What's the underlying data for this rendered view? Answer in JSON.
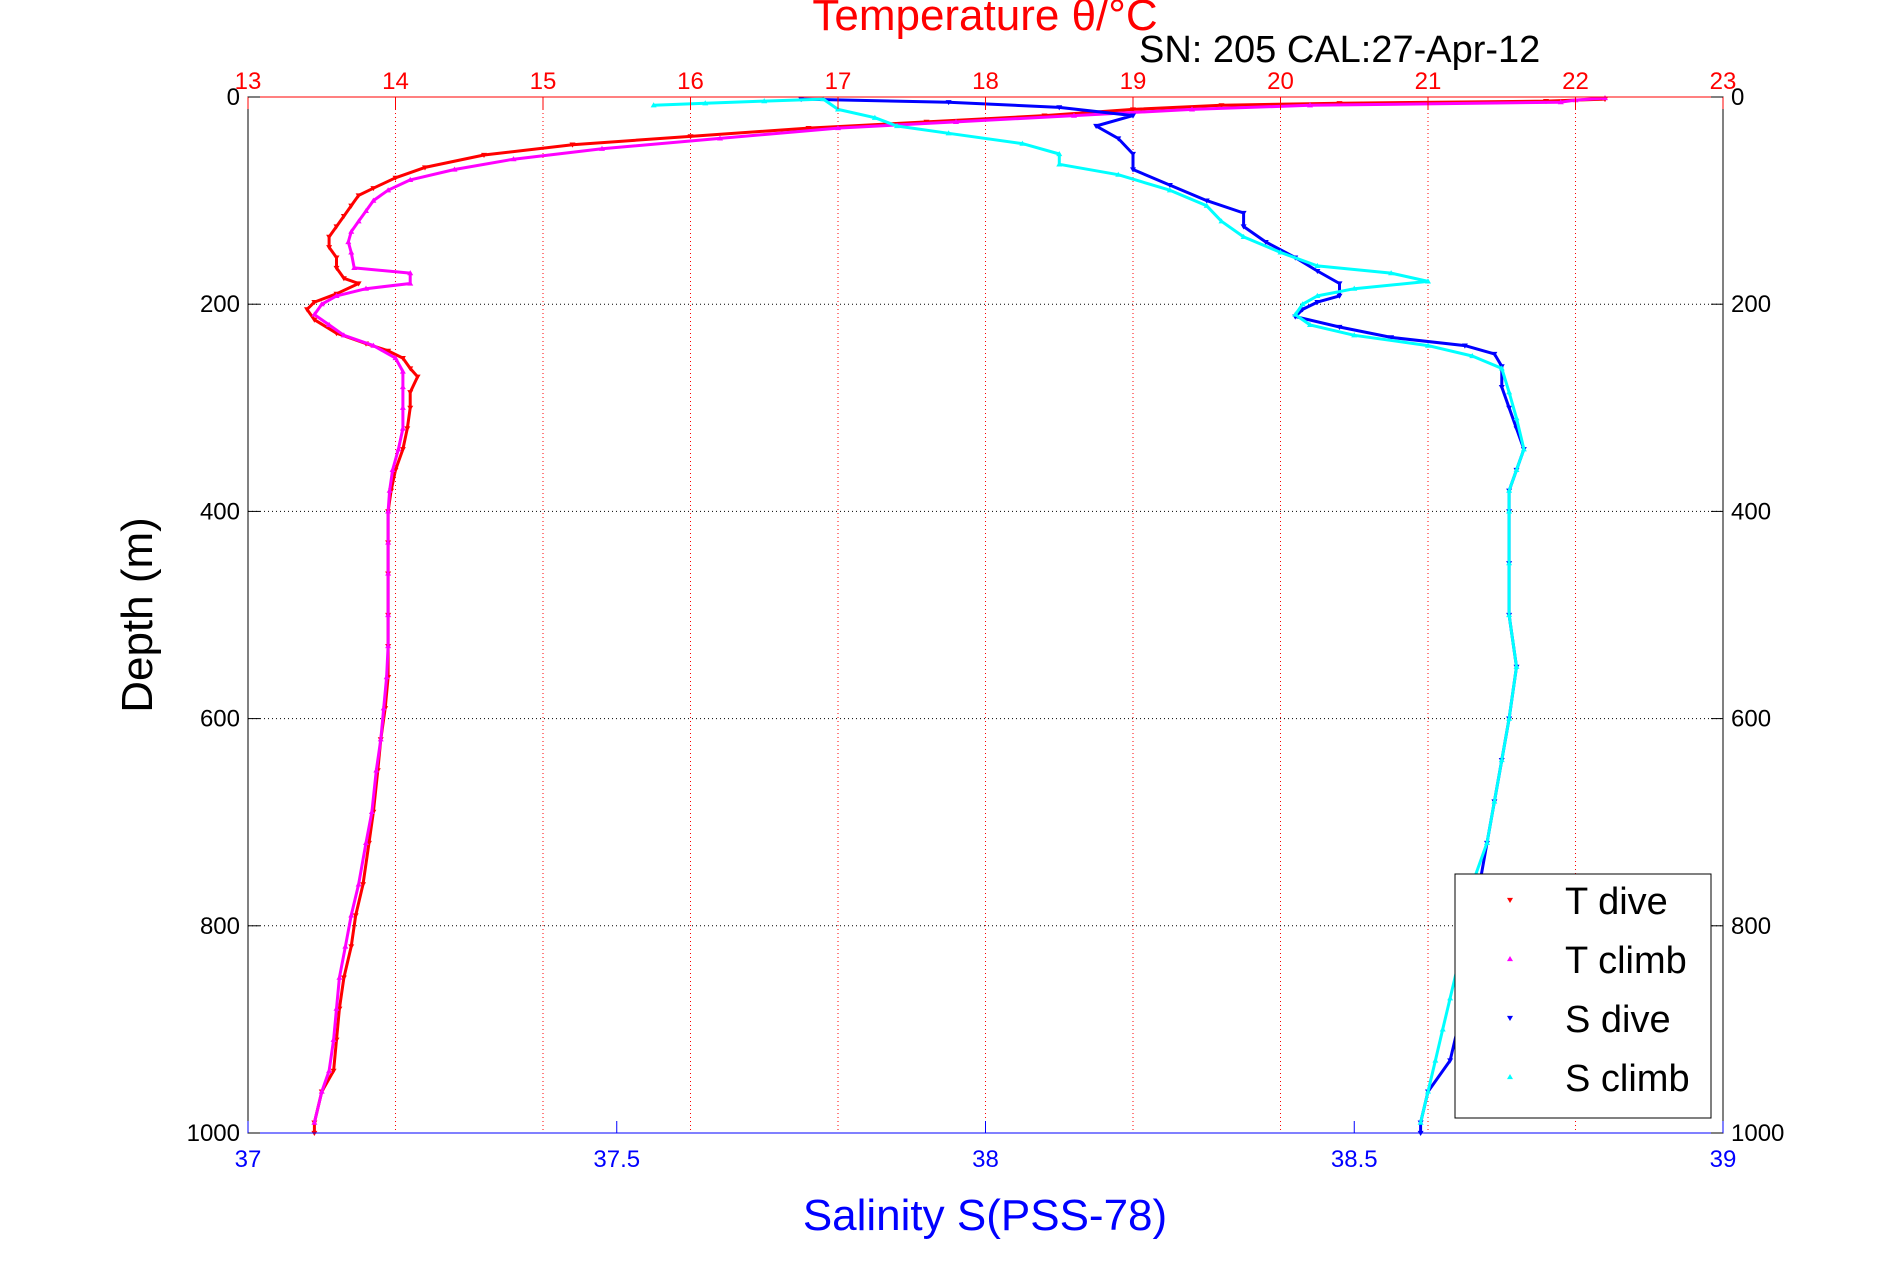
{
  "chart_data": {
    "type": "scatter",
    "title": "Temperature θ/°C",
    "subtitle": "SN: 205  CAL:27-Apr-12",
    "ylabel": "Depth (m)",
    "xlabel": "Salinity S(PSS-78)",
    "y_axis": {
      "label": "Depth (m)",
      "range": [
        0,
        1000
      ],
      "inverted": true,
      "ticks": [
        "0",
        "200",
        "400",
        "600",
        "800",
        "1000"
      ],
      "grid": true
    },
    "x_top_axis": {
      "label": "Temperature θ/°C",
      "range": [
        13,
        23
      ],
      "ticks": [
        "13",
        "14",
        "15",
        "16",
        "17",
        "18",
        "19",
        "20",
        "21",
        "22",
        "23"
      ],
      "color": "#ff0000",
      "grid": true
    },
    "x_bottom_axis": {
      "label": "Salinity S(PSS-78)",
      "range": [
        37,
        39
      ],
      "ticks": [
        "37",
        "37.5",
        "38",
        "38.5",
        "39"
      ],
      "color": "#0000ff"
    },
    "legend_position": "bottom-right",
    "series": [
      {
        "name": "T dive",
        "axis": "temperature",
        "color": "#ff0000",
        "marker": "triangle-down",
        "points": [
          [
            22.2,
            2
          ],
          [
            21.8,
            4
          ],
          [
            20.4,
            6
          ],
          [
            19.6,
            8
          ],
          [
            19.0,
            12
          ],
          [
            18.4,
            18
          ],
          [
            17.6,
            24
          ],
          [
            16.8,
            30
          ],
          [
            16.0,
            38
          ],
          [
            15.2,
            46
          ],
          [
            14.6,
            56
          ],
          [
            14.2,
            68
          ],
          [
            14.0,
            78
          ],
          [
            13.85,
            88
          ],
          [
            13.75,
            95
          ],
          [
            13.7,
            105
          ],
          [
            13.65,
            115
          ],
          [
            13.6,
            125
          ],
          [
            13.55,
            135
          ],
          [
            13.55,
            145
          ],
          [
            13.6,
            155
          ],
          [
            13.6,
            165
          ],
          [
            13.65,
            175
          ],
          [
            13.75,
            180
          ],
          [
            13.6,
            190
          ],
          [
            13.45,
            198
          ],
          [
            13.4,
            205
          ],
          [
            13.45,
            215
          ],
          [
            13.6,
            228
          ],
          [
            13.8,
            238
          ],
          [
            13.95,
            245
          ],
          [
            14.05,
            252
          ],
          [
            14.1,
            262
          ],
          [
            14.15,
            270
          ],
          [
            14.1,
            285
          ],
          [
            14.1,
            300
          ],
          [
            14.08,
            320
          ],
          [
            14.05,
            340
          ],
          [
            14.0,
            360
          ],
          [
            13.97,
            380
          ],
          [
            13.95,
            400
          ],
          [
            13.95,
            430
          ],
          [
            13.95,
            460
          ],
          [
            13.95,
            500
          ],
          [
            13.95,
            530
          ],
          [
            13.95,
            560
          ],
          [
            13.93,
            590
          ],
          [
            13.9,
            620
          ],
          [
            13.88,
            650
          ],
          [
            13.85,
            690
          ],
          [
            13.82,
            720
          ],
          [
            13.78,
            760
          ],
          [
            13.73,
            790
          ],
          [
            13.7,
            820
          ],
          [
            13.65,
            850
          ],
          [
            13.62,
            880
          ],
          [
            13.6,
            910
          ],
          [
            13.58,
            940
          ],
          [
            13.5,
            960
          ],
          [
            13.45,
            990
          ],
          [
            13.45,
            1000
          ]
        ]
      },
      {
        "name": "T climb",
        "axis": "temperature",
        "color": "#ff00ff",
        "marker": "triangle-up",
        "points": [
          [
            22.2,
            1
          ],
          [
            22.0,
            3
          ],
          [
            21.9,
            5
          ],
          [
            20.2,
            8
          ],
          [
            19.4,
            12
          ],
          [
            18.6,
            18
          ],
          [
            17.8,
            24
          ],
          [
            17.0,
            30
          ],
          [
            16.2,
            40
          ],
          [
            15.4,
            50
          ],
          [
            14.8,
            60
          ],
          [
            14.4,
            70
          ],
          [
            14.1,
            80
          ],
          [
            13.95,
            90
          ],
          [
            13.85,
            100
          ],
          [
            13.8,
            110
          ],
          [
            13.75,
            120
          ],
          [
            13.7,
            130
          ],
          [
            13.68,
            140
          ],
          [
            13.7,
            150
          ],
          [
            13.72,
            165
          ],
          [
            14.1,
            170
          ],
          [
            14.1,
            180
          ],
          [
            13.8,
            185
          ],
          [
            13.6,
            192
          ],
          [
            13.5,
            200
          ],
          [
            13.45,
            210
          ],
          [
            13.55,
            220
          ],
          [
            13.65,
            230
          ],
          [
            13.85,
            240
          ],
          [
            14.0,
            252
          ],
          [
            14.05,
            265
          ],
          [
            14.05,
            280
          ],
          [
            14.05,
            300
          ],
          [
            14.05,
            320
          ],
          [
            14.02,
            340
          ],
          [
            13.98,
            360
          ],
          [
            13.96,
            380
          ],
          [
            13.95,
            400
          ],
          [
            13.95,
            430
          ],
          [
            13.95,
            460
          ],
          [
            13.95,
            500
          ],
          [
            13.95,
            530
          ],
          [
            13.94,
            560
          ],
          [
            13.92,
            590
          ],
          [
            13.9,
            620
          ],
          [
            13.87,
            650
          ],
          [
            13.84,
            690
          ],
          [
            13.8,
            720
          ],
          [
            13.75,
            760
          ],
          [
            13.7,
            790
          ],
          [
            13.66,
            820
          ],
          [
            13.62,
            850
          ],
          [
            13.6,
            880
          ],
          [
            13.58,
            910
          ],
          [
            13.55,
            940
          ],
          [
            13.5,
            960
          ],
          [
            13.45,
            990
          ]
        ]
      },
      {
        "name": "S dive",
        "axis": "salinity",
        "color": "#0000ff",
        "marker": "triangle-down",
        "points": [
          [
            37.75,
            2
          ],
          [
            37.95,
            5
          ],
          [
            38.1,
            10
          ],
          [
            38.2,
            18
          ],
          [
            38.15,
            28
          ],
          [
            38.18,
            40
          ],
          [
            38.2,
            55
          ],
          [
            38.2,
            70
          ],
          [
            38.25,
            85
          ],
          [
            38.3,
            100
          ],
          [
            38.35,
            112
          ],
          [
            38.35,
            125
          ],
          [
            38.38,
            140
          ],
          [
            38.42,
            155
          ],
          [
            38.45,
            168
          ],
          [
            38.48,
            180
          ],
          [
            38.48,
            192
          ],
          [
            38.45,
            198
          ],
          [
            38.43,
            205
          ],
          [
            38.42,
            212
          ],
          [
            38.48,
            222
          ],
          [
            38.55,
            232
          ],
          [
            38.65,
            240
          ],
          [
            38.69,
            248
          ],
          [
            38.7,
            260
          ],
          [
            38.7,
            280
          ],
          [
            38.71,
            300
          ],
          [
            38.72,
            320
          ],
          [
            38.73,
            340
          ],
          [
            38.72,
            360
          ],
          [
            38.71,
            380
          ],
          [
            38.71,
            400
          ],
          [
            38.71,
            450
          ],
          [
            38.71,
            500
          ],
          [
            38.72,
            550
          ],
          [
            38.71,
            600
          ],
          [
            38.7,
            640
          ],
          [
            38.69,
            680
          ],
          [
            38.68,
            720
          ],
          [
            38.67,
            760
          ],
          [
            38.66,
            800
          ],
          [
            38.65,
            840
          ],
          [
            38.65,
            870
          ],
          [
            38.64,
            900
          ],
          [
            38.63,
            930
          ],
          [
            38.6,
            960
          ],
          [
            38.59,
            990
          ],
          [
            38.59,
            1000
          ]
        ]
      },
      {
        "name": "S climb",
        "axis": "salinity",
        "color": "#00ffff",
        "marker": "triangle-up",
        "points": [
          [
            37.55,
            8
          ],
          [
            37.62,
            6
          ],
          [
            37.7,
            4
          ],
          [
            37.78,
            2
          ],
          [
            37.8,
            12
          ],
          [
            37.85,
            20
          ],
          [
            37.88,
            28
          ],
          [
            37.95,
            35
          ],
          [
            38.05,
            45
          ],
          [
            38.1,
            55
          ],
          [
            38.1,
            65
          ],
          [
            38.18,
            75
          ],
          [
            38.25,
            90
          ],
          [
            38.3,
            105
          ],
          [
            38.32,
            120
          ],
          [
            38.35,
            135
          ],
          [
            38.4,
            150
          ],
          [
            38.45,
            163
          ],
          [
            38.55,
            170
          ],
          [
            38.6,
            178
          ],
          [
            38.5,
            185
          ],
          [
            38.45,
            192
          ],
          [
            38.43,
            200
          ],
          [
            38.42,
            210
          ],
          [
            38.44,
            220
          ],
          [
            38.5,
            230
          ],
          [
            38.6,
            240
          ],
          [
            38.66,
            250
          ],
          [
            38.7,
            262
          ],
          [
            38.71,
            285
          ],
          [
            38.72,
            310
          ],
          [
            38.73,
            340
          ],
          [
            38.72,
            360
          ],
          [
            38.71,
            380
          ],
          [
            38.71,
            400
          ],
          [
            38.71,
            450
          ],
          [
            38.71,
            500
          ],
          [
            38.72,
            550
          ],
          [
            38.71,
            600
          ],
          [
            38.7,
            640
          ],
          [
            38.69,
            680
          ],
          [
            38.68,
            720
          ],
          [
            38.66,
            760
          ],
          [
            38.65,
            800
          ],
          [
            38.64,
            840
          ],
          [
            38.63,
            870
          ],
          [
            38.62,
            900
          ],
          [
            38.61,
            930
          ],
          [
            38.6,
            960
          ],
          [
            38.59,
            990
          ]
        ]
      }
    ]
  }
}
